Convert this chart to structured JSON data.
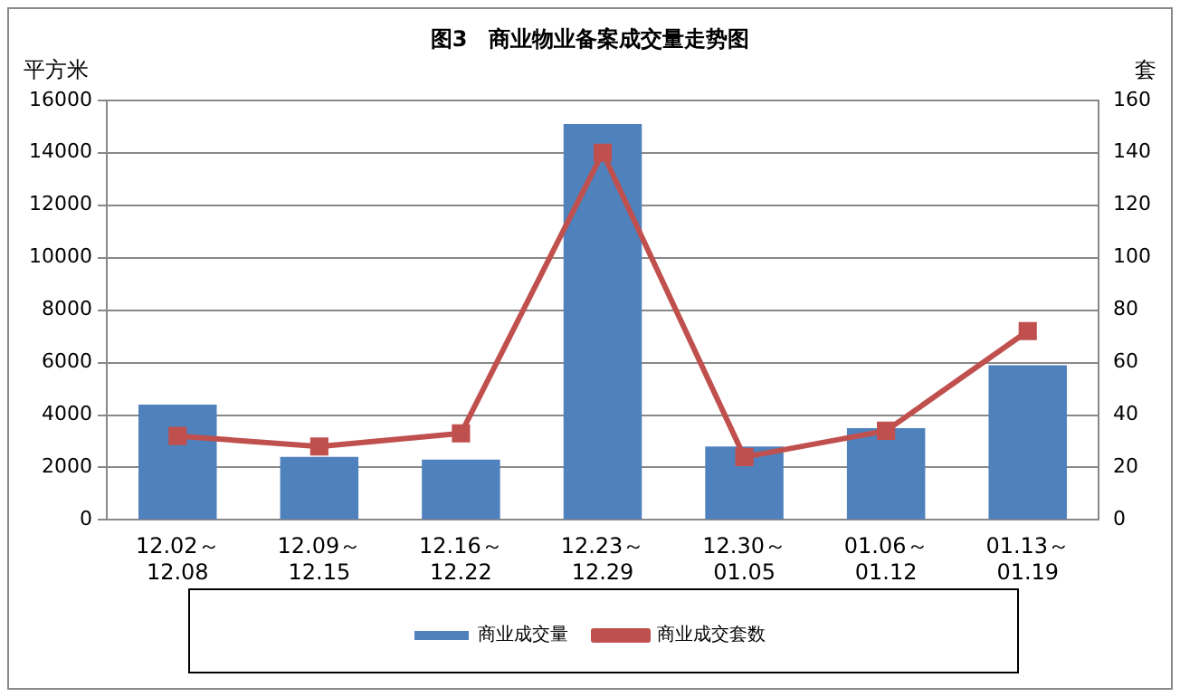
{
  "chart_data": {
    "type": "bar",
    "title": "图3　商业物业备案成交量走势图",
    "ylabel": "平方米",
    "y2label": "套",
    "categories": [
      "12.02～12.08",
      "12.09～12.15",
      "12.16～12.22",
      "12.23～12.29",
      "12.30～01.05",
      "01.06～01.12",
      "01.13～01.19"
    ],
    "series": [
      {
        "name": "商业成交量",
        "color": "#4f81bd",
        "values": [
          4400,
          2400,
          2300,
          15100,
          2800,
          3500,
          5900
        ]
      },
      {
        "name": "商业成交套数",
        "type": "line",
        "axis": "y2",
        "color": "#c0504d",
        "marker": "square",
        "values": [
          32,
          28,
          33,
          140,
          24,
          34,
          72
        ]
      }
    ],
    "ylim": [
      0,
      16000
    ],
    "yticks": [
      0,
      2000,
      4000,
      6000,
      8000,
      10000,
      12000,
      14000,
      16000
    ],
    "y2lim": [
      0,
      160
    ],
    "y2ticks": [
      0,
      20,
      40,
      60,
      80,
      100,
      120,
      140,
      160
    ],
    "grid": "y",
    "legend": "bottom"
  }
}
